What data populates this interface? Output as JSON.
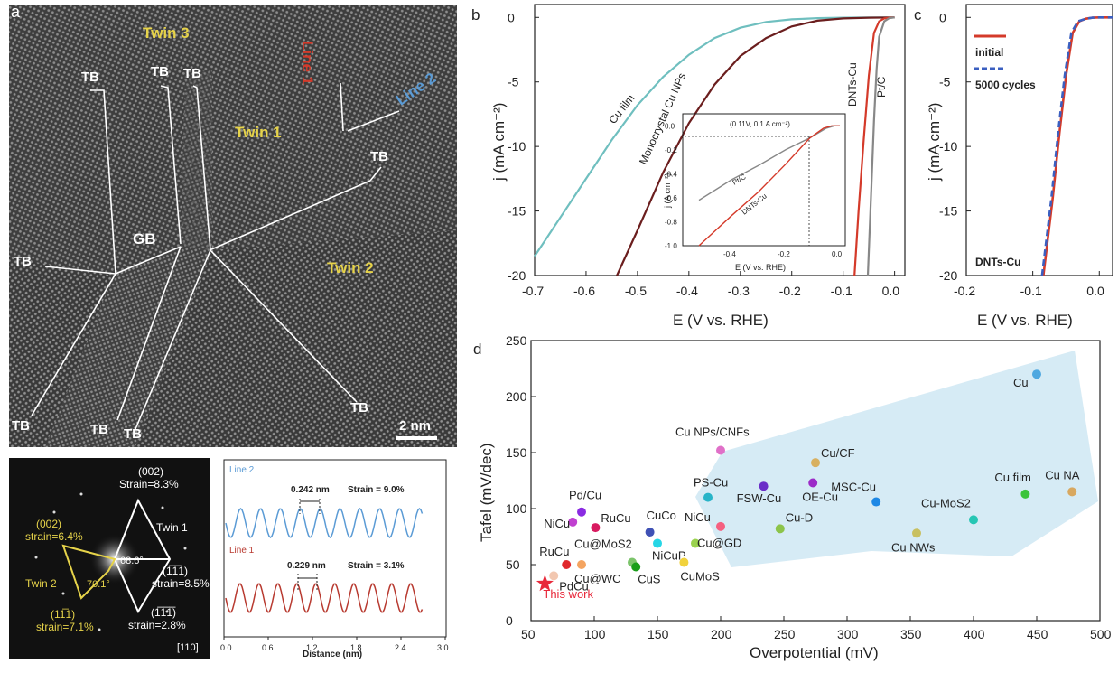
{
  "panel_a": {
    "letter": "a",
    "twin3": "Twin 3",
    "twin1": "Twin 1",
    "twin2": "Twin 2",
    "gb": "GB",
    "tb": "TB",
    "line1": "Line 1",
    "line2": "Line 2",
    "scalebar": "2 nm",
    "colors": {
      "twin_label": "#e6d34a",
      "line1": "#d43a2a",
      "line2": "#5b9bd5"
    }
  },
  "fft": {
    "p002_top": "(002)",
    "strain_8_3": "Strain=8.3%",
    "twin1": "Twin 1",
    "p002_left": "(002)",
    "strain_6_4": "strain=6.4%",
    "angle_68": "68.6°",
    "p111": "(1̅1̅1)",
    "p111_b": "(1̅1̅1̅)",
    "strain_8_5": "strain=8.5%",
    "twin2": "Twin 2",
    "angle_70": "70.1°",
    "p1m11": "(11̅1)",
    "p1m1m1": "(11̅1̅)",
    "strain_7_1": "strain=7.1%",
    "strain_2_8": "strain=2.8%",
    "zone": "[110]"
  },
  "profile": {
    "line2_label": "Line 2",
    "d2": "0.242 nm",
    "strain2": "Strain = 9.0%",
    "line1_label": "Line 1",
    "d1": "0.229 nm",
    "strain1": "Strain = 3.1%",
    "xlabel": "Distance (nm)",
    "xticks": [
      "0.0",
      "0.6",
      "1.2",
      "1.8",
      "2.4",
      "3.0"
    ]
  },
  "panel_b": {
    "letter": "b",
    "ylabel": "j (mA cm⁻²)",
    "xlabel": "E (V vs. RHE)",
    "xticks": [
      "-0.7",
      "-0.6",
      "-0.5",
      "-0.4",
      "-0.3",
      "-0.2",
      "-0.1",
      "0.0"
    ],
    "yticks": [
      "0",
      "-5",
      "-10",
      "-15",
      "-20"
    ],
    "labels": {
      "cu_film": "Cu film",
      "mono": "Monocrystal Cu NPs",
      "dnts": "DNTs-Cu",
      "ptc": "Pt/C"
    },
    "inset": {
      "annot": "(0.11V, 0.1 A cm⁻²)",
      "ylabel": "j (A cm⁻²)",
      "xlabel": "E (V vs. RHE)",
      "ptc": "Pt/C",
      "dnts": "DNTs-Cu",
      "xticks": [
        "-0.4",
        "-0.2",
        "0.0"
      ],
      "yticks": [
        "0.0",
        "-0.2",
        "-0.4",
        "-0.6",
        "-0.8",
        "-1.0"
      ]
    }
  },
  "panel_c": {
    "letter": "c",
    "ylabel": "j (mA cm⁻²)",
    "xlabel": "E (V vs. RHE)",
    "xticks": [
      "-0.2",
      "-0.1",
      "0.0"
    ],
    "yticks": [
      "0",
      "-5",
      "-10",
      "-15",
      "-20"
    ],
    "legend": [
      "initial",
      "5000 cycles"
    ],
    "sample": "DNTs-Cu"
  },
  "panel_d": {
    "letter": "d",
    "xlabel": "Overpotential (mV)",
    "ylabel": "Tafel (mV/dec)",
    "xticks": [
      "50",
      "100",
      "150",
      "200",
      "250",
      "300",
      "350",
      "400",
      "450",
      "500"
    ],
    "yticks": [
      "0",
      "50",
      "100",
      "150",
      "200",
      "250"
    ],
    "this_work": "This work"
  },
  "chart_data": [
    {
      "type": "line",
      "title": "",
      "xlabel": "E (V vs. RHE)",
      "ylabel": "j (mA cm⁻²)",
      "xlim": [
        -0.7,
        0.02
      ],
      "ylim": [
        -20,
        1
      ],
      "series": [
        {
          "name": "Cu film",
          "color": "#6fbfbf",
          "x": [
            -0.7,
            -0.65,
            -0.6,
            -0.55,
            -0.5,
            -0.45,
            -0.4,
            -0.35,
            -0.3,
            -0.25,
            -0.2,
            -0.15,
            -0.1,
            -0.05,
            0.0
          ],
          "y": [
            -18.5,
            -15.5,
            -12.5,
            -9.5,
            -6.8,
            -4.6,
            -2.9,
            -1.6,
            -0.8,
            -0.35,
            -0.15,
            -0.06,
            -0.02,
            -0.01,
            0
          ]
        },
        {
          "name": "Monocrystal Cu NPs",
          "color": "#6b1e1e",
          "x": [
            -0.54,
            -0.5,
            -0.45,
            -0.4,
            -0.35,
            -0.3,
            -0.25,
            -0.2,
            -0.15,
            -0.1,
            -0.05,
            0.0
          ],
          "y": [
            -20,
            -16.5,
            -12.0,
            -8.2,
            -5.2,
            -3.0,
            -1.6,
            -0.7,
            -0.25,
            -0.08,
            -0.02,
            0
          ]
        },
        {
          "name": "DNTs-Cu",
          "color": "#d43a2a",
          "x": [
            -0.078,
            -0.07,
            -0.06,
            -0.05,
            -0.04,
            -0.03,
            -0.02,
            -0.01,
            0.0
          ],
          "y": [
            -20,
            -15,
            -9.5,
            -4.5,
            -1.2,
            -0.3,
            -0.08,
            -0.02,
            0
          ]
        },
        {
          "name": "Pt/C",
          "color": "#888888",
          "x": [
            -0.052,
            -0.045,
            -0.04,
            -0.035,
            -0.03,
            -0.02,
            -0.01,
            0.0
          ],
          "y": [
            -20,
            -13,
            -8,
            -4,
            -1.5,
            -0.3,
            -0.05,
            0
          ]
        }
      ]
    },
    {
      "type": "line",
      "title": "",
      "xlabel": "E (V vs. RHE)",
      "ylabel": "j (A cm⁻²)",
      "xlim": [
        -0.58,
        0.02
      ],
      "ylim": [
        -1.0,
        0.1
      ],
      "series": [
        {
          "name": "Pt/C",
          "color": "#888888",
          "x": [
            -0.52,
            -0.4,
            -0.3,
            -0.2,
            -0.11,
            -0.05,
            -0.02,
            0.0
          ],
          "y": [
            -0.62,
            -0.45,
            -0.33,
            -0.2,
            -0.1,
            -0.02,
            0,
            0
          ]
        },
        {
          "name": "DNTs-Cu",
          "color": "#d43a2a",
          "x": [
            -0.52,
            -0.4,
            -0.3,
            -0.2,
            -0.11,
            -0.06,
            -0.03,
            0.0
          ],
          "y": [
            -1.0,
            -0.75,
            -0.55,
            -0.32,
            -0.1,
            -0.02,
            0,
            0
          ]
        }
      ]
    },
    {
      "type": "line",
      "title": "",
      "xlabel": "E (V vs. RHE)",
      "ylabel": "j (mA cm⁻²)",
      "xlim": [
        -0.2,
        0.02
      ],
      "ylim": [
        -20,
        1
      ],
      "series": [
        {
          "name": "initial",
          "color": "#d43a2a",
          "x": [
            -0.084,
            -0.07,
            -0.06,
            -0.05,
            -0.04,
            -0.03,
            -0.02,
            -0.01,
            0.0,
            0.02
          ],
          "y": [
            -20,
            -14,
            -9,
            -4.5,
            -1.2,
            -0.3,
            -0.1,
            -0.02,
            0,
            0
          ]
        },
        {
          "name": "5000 cycles",
          "color": "#3b5fc0",
          "x": [
            -0.086,
            -0.072,
            -0.062,
            -0.052,
            -0.042,
            -0.032,
            -0.02,
            -0.01,
            0.0,
            0.02
          ],
          "y": [
            -20,
            -14,
            -9,
            -4.5,
            -1.2,
            -0.3,
            -0.1,
            -0.02,
            0,
            0
          ]
        }
      ]
    },
    {
      "type": "scatter",
      "title": "",
      "xlabel": "Overpotential (mV)",
      "ylabel": "Tafel (mV/dec)",
      "xlim": [
        50,
        500
      ],
      "ylim": [
        0,
        250
      ],
      "points": [
        {
          "label": "This work",
          "x": 61,
          "y": 33,
          "color": "#e8283a",
          "marker": "star"
        },
        {
          "label": "PdCu",
          "x": 68,
          "y": 40,
          "color": "#f2c7b0"
        },
        {
          "label": "RuCu",
          "x": 78,
          "y": 50,
          "color": "#e0282c"
        },
        {
          "label": "Cu@WC",
          "x": 90,
          "y": 50,
          "color": "#f4a460"
        },
        {
          "label": "NiCu",
          "x": 83,
          "y": 88,
          "color": "#c040d0"
        },
        {
          "label": "Pd/Cu",
          "x": 90,
          "y": 97,
          "color": "#8a2be2"
        },
        {
          "label": "RuCu",
          "x": 101,
          "y": 83,
          "color": "#d81b60"
        },
        {
          "label": "Cu@MoS2",
          "x": 130,
          "y": 52,
          "color": "#7cc46b"
        },
        {
          "label": "CuS",
          "x": 133,
          "y": 48,
          "color": "#1a9e1a"
        },
        {
          "label": "CuCo",
          "x": 144,
          "y": 79,
          "color": "#3f51b5"
        },
        {
          "label": "NiCuP",
          "x": 150,
          "y": 69,
          "color": "#26d6e6"
        },
        {
          "label": "CuMoS",
          "x": 171,
          "y": 52,
          "color": "#f1d23c"
        },
        {
          "label": "Cu@GD",
          "x": 180,
          "y": 69,
          "color": "#9ad24e"
        },
        {
          "label": "PS-Cu",
          "x": 190,
          "y": 110,
          "color": "#28b4c8"
        },
        {
          "label": "NiCu",
          "x": 200,
          "y": 84,
          "color": "#f56080"
        },
        {
          "label": "Cu NPs/CNFs",
          "x": 200,
          "y": 152,
          "color": "#e070c8"
        },
        {
          "label": "FSW-Cu",
          "x": 234,
          "y": 120,
          "color": "#6a2dc8"
        },
        {
          "label": "Cu-D",
          "x": 247,
          "y": 82,
          "color": "#8cc44a"
        },
        {
          "label": "Cu/CF",
          "x": 275,
          "y": 141,
          "color": "#d8b060"
        },
        {
          "label": "OE-Cu",
          "x": 273,
          "y": 123,
          "color": "#9c2bc8"
        },
        {
          "label": "MSC-Cu",
          "x": 323,
          "y": 106,
          "color": "#1e88e5"
        },
        {
          "label": "Cu NWs",
          "x": 355,
          "y": 78,
          "color": "#c8c060"
        },
        {
          "label": "Cu-MoS2",
          "x": 400,
          "y": 90,
          "color": "#26c6b4"
        },
        {
          "label": "Cu film",
          "x": 441,
          "y": 113,
          "color": "#3cc43c"
        },
        {
          "label": "Cu",
          "x": 450,
          "y": 220,
          "color": "#4fa8e0"
        },
        {
          "label": "Cu NA",
          "x": 478,
          "y": 115,
          "color": "#d8a860"
        }
      ]
    }
  ]
}
